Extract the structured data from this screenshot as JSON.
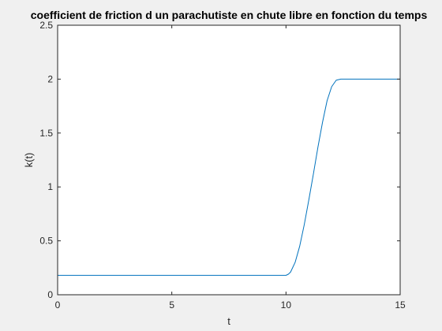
{
  "chart_data": {
    "type": "line",
    "title": "coefficient de friction d un parachutiste en chute libre en fonction du temps",
    "xlabel": "t",
    "ylabel": "k(t)",
    "xlim": [
      0,
      15
    ],
    "ylim": [
      0,
      2.5
    ],
    "xticks": [
      0,
      5,
      10,
      15
    ],
    "yticks": [
      0,
      0.5,
      1,
      1.5,
      2,
      2.5
    ],
    "xtick_labels": [
      "0",
      "5",
      "10",
      "15"
    ],
    "ytick_labels": [
      "0",
      "0.5",
      "1",
      "1.5",
      "2",
      "2.5"
    ],
    "grid": false,
    "legend": false,
    "series": [
      {
        "color": "#0072bd",
        "x": [
          0,
          2,
          4,
          6,
          8,
          10,
          10.1,
          10.2,
          10.4,
          10.6,
          10.8,
          11.0,
          11.2,
          11.4,
          11.6,
          11.8,
          12.0,
          12.2,
          12.4,
          12.6,
          12.8,
          13.0,
          13.2,
          13.4,
          14,
          15
        ],
        "values": [
          0.18,
          0.18,
          0.18,
          0.18,
          0.18,
          0.18,
          0.19,
          0.21,
          0.3,
          0.45,
          0.65,
          0.88,
          1.12,
          1.37,
          1.6,
          1.8,
          1.93,
          1.99,
          2.0,
          2.0,
          2.0,
          2.0,
          2.0,
          2.0,
          2.0,
          2.0
        ]
      }
    ]
  }
}
